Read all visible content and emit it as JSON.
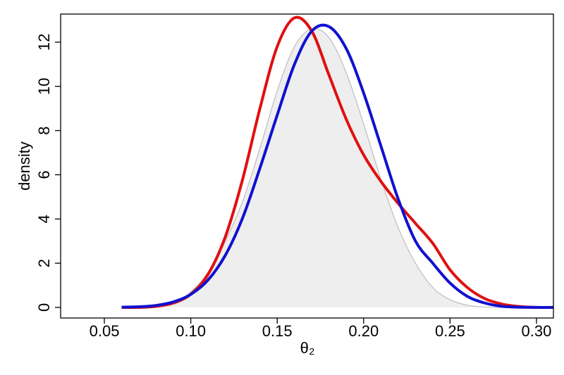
{
  "chart_data": {
    "type": "line",
    "x_label": "θ₂",
    "y_label": "density",
    "x": [
      0.06,
      0.07,
      0.08,
      0.09,
      0.1,
      0.11,
      0.12,
      0.13,
      0.14,
      0.15,
      0.16,
      0.17,
      0.18,
      0.19,
      0.2,
      0.21,
      0.22,
      0.23,
      0.24,
      0.25,
      0.26,
      0.27,
      0.28,
      0.29,
      0.3,
      0.31
    ],
    "series": [
      {
        "color": "#bdbdbd",
        "fill": "#eeeeee",
        "values": [
          0,
          0,
          0.05,
          0.2,
          0.7,
          1.6,
          3.0,
          4.8,
          7.2,
          9.8,
          11.8,
          12.6,
          12.2,
          10.6,
          8.3,
          5.8,
          3.6,
          2.0,
          0.9,
          0.35,
          0.1,
          0.02,
          0,
          0,
          0,
          0
        ]
      },
      {
        "color": "#e01010",
        "values": [
          0,
          0,
          0.05,
          0.2,
          0.6,
          1.5,
          3.2,
          5.8,
          9.0,
          11.8,
          13.1,
          12.5,
          10.5,
          8.5,
          6.9,
          5.7,
          4.7,
          3.8,
          2.9,
          1.7,
          0.9,
          0.4,
          0.15,
          0.04,
          0,
          0
        ]
      },
      {
        "color": "#1010d0",
        "values": [
          0.01,
          0.03,
          0.09,
          0.25,
          0.59,
          1.24,
          2.36,
          4.05,
          6.3,
          8.7,
          11.0,
          12.5,
          12.7,
          11.7,
          9.7,
          7.3,
          4.9,
          3.0,
          2.0,
          1.1,
          0.5,
          0.2,
          0.05,
          0.01,
          0,
          0
        ]
      }
    ],
    "xlim": [
      0.0247,
      0.3098
    ],
    "ylim": [
      -0.48,
      13.27
    ],
    "xticks": [
      {
        "value": 0.05,
        "label": "0.05"
      },
      {
        "value": 0.1,
        "label": "0.10"
      },
      {
        "value": 0.15,
        "label": "0.15"
      },
      {
        "value": 0.2,
        "label": "0.20"
      },
      {
        "value": 0.25,
        "label": "0.25"
      },
      {
        "value": 0.3,
        "label": "0.30"
      }
    ],
    "yticks": [
      0,
      2,
      4,
      6,
      8,
      10,
      12
    ]
  }
}
